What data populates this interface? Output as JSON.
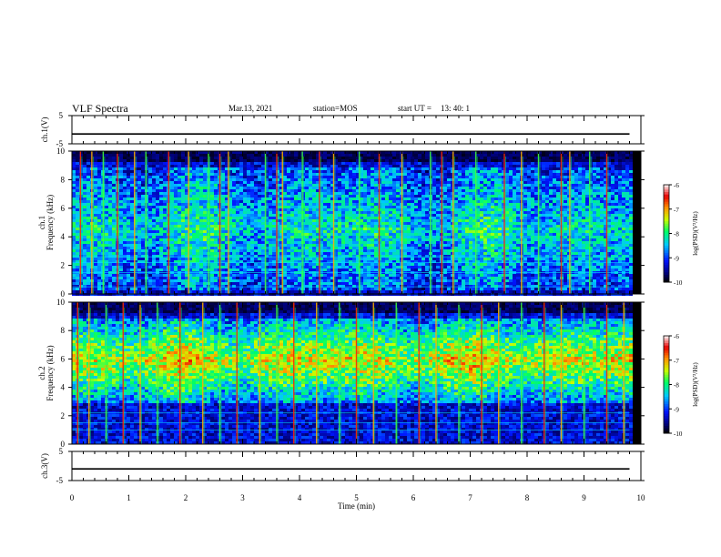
{
  "header": {
    "title": "VLF Spectra",
    "date": "Mar.13, 2021",
    "station": "station=MOS",
    "start_label": "start UT =",
    "start_time": "13: 40: 1"
  },
  "chart_data": [
    {
      "type": "line",
      "name": "ch1-voltage",
      "ylabel": "ch.1(V)",
      "ylim": [
        -5,
        5
      ],
      "yticks": [
        "5",
        "-5"
      ],
      "xlim": [
        0,
        10
      ],
      "x": [
        0,
        9.8
      ],
      "values": [
        -1.5,
        -1.5
      ]
    },
    {
      "type": "heatmap",
      "name": "ch1-spectrogram",
      "ylabel": "ch.1",
      "ylabel2": "Frequency (kHz)",
      "ylim": [
        0,
        10
      ],
      "yticks": [
        "0",
        "2",
        "4",
        "6",
        "8",
        "10"
      ],
      "xlim": [
        0,
        10
      ],
      "data_xrange": [
        0,
        9.8
      ],
      "colorbar": {
        "label": "log(PSD)(V²/Hz)",
        "range": [
          -10,
          -6
        ],
        "ticks": [
          "-6",
          "-7",
          "-8",
          "-9",
          "-10"
        ]
      },
      "strong_band_khz": [
        0.3,
        9.0
      ],
      "noise_floor_log_psd": -9.5,
      "sferic_times_min": [
        0.15,
        0.35,
        0.55,
        0.8,
        1.1,
        1.3,
        1.7,
        2.05,
        2.4,
        2.6,
        2.75,
        3.4,
        3.6,
        3.7,
        4.05,
        4.35,
        4.6,
        5.05,
        5.4,
        5.8,
        6.3,
        6.5,
        6.7,
        7.1,
        7.6,
        7.9,
        8.2,
        8.6,
        8.75,
        9.1,
        9.4
      ]
    },
    {
      "type": "heatmap",
      "name": "ch2-spectrogram",
      "ylabel": "ch.2",
      "ylabel2": "Frequency (kHz)",
      "ylim": [
        0,
        10
      ],
      "yticks": [
        "0",
        "2",
        "4",
        "6",
        "8",
        "10"
      ],
      "xlim": [
        0,
        10
      ],
      "data_xrange": [
        0,
        9.8
      ],
      "colorbar": {
        "label": "log(PSD)(V²/Hz)",
        "range": [
          -10,
          -6
        ],
        "ticks": [
          "-6",
          "-7",
          "-8",
          "-9",
          "-10"
        ]
      },
      "strong_band_khz": [
        3.0,
        9.0
      ],
      "noise_floor_log_psd": -9.3,
      "sferic_times_min": [
        0.1,
        0.3,
        0.6,
        0.9,
        1.2,
        1.5,
        1.9,
        2.3,
        2.6,
        2.9,
        3.3,
        3.6,
        3.9,
        4.3,
        4.7,
        5.0,
        5.3,
        5.7,
        6.1,
        6.4,
        6.8,
        7.2,
        7.5,
        7.9,
        8.3,
        8.6,
        9.0,
        9.4,
        9.7
      ]
    },
    {
      "type": "line",
      "name": "ch3-voltage",
      "ylabel": "ch.3(V)",
      "ylim": [
        -5,
        5
      ],
      "yticks": [
        "5",
        "-5"
      ],
      "xlim": [
        0,
        10
      ],
      "x": [
        0,
        9.8
      ],
      "values": [
        -1.0,
        -1.0
      ]
    }
  ],
  "x_axis": {
    "label": "Time (min)",
    "ticks": [
      "0",
      "1",
      "2",
      "3",
      "4",
      "5",
      "6",
      "7",
      "8",
      "9",
      "10"
    ]
  }
}
